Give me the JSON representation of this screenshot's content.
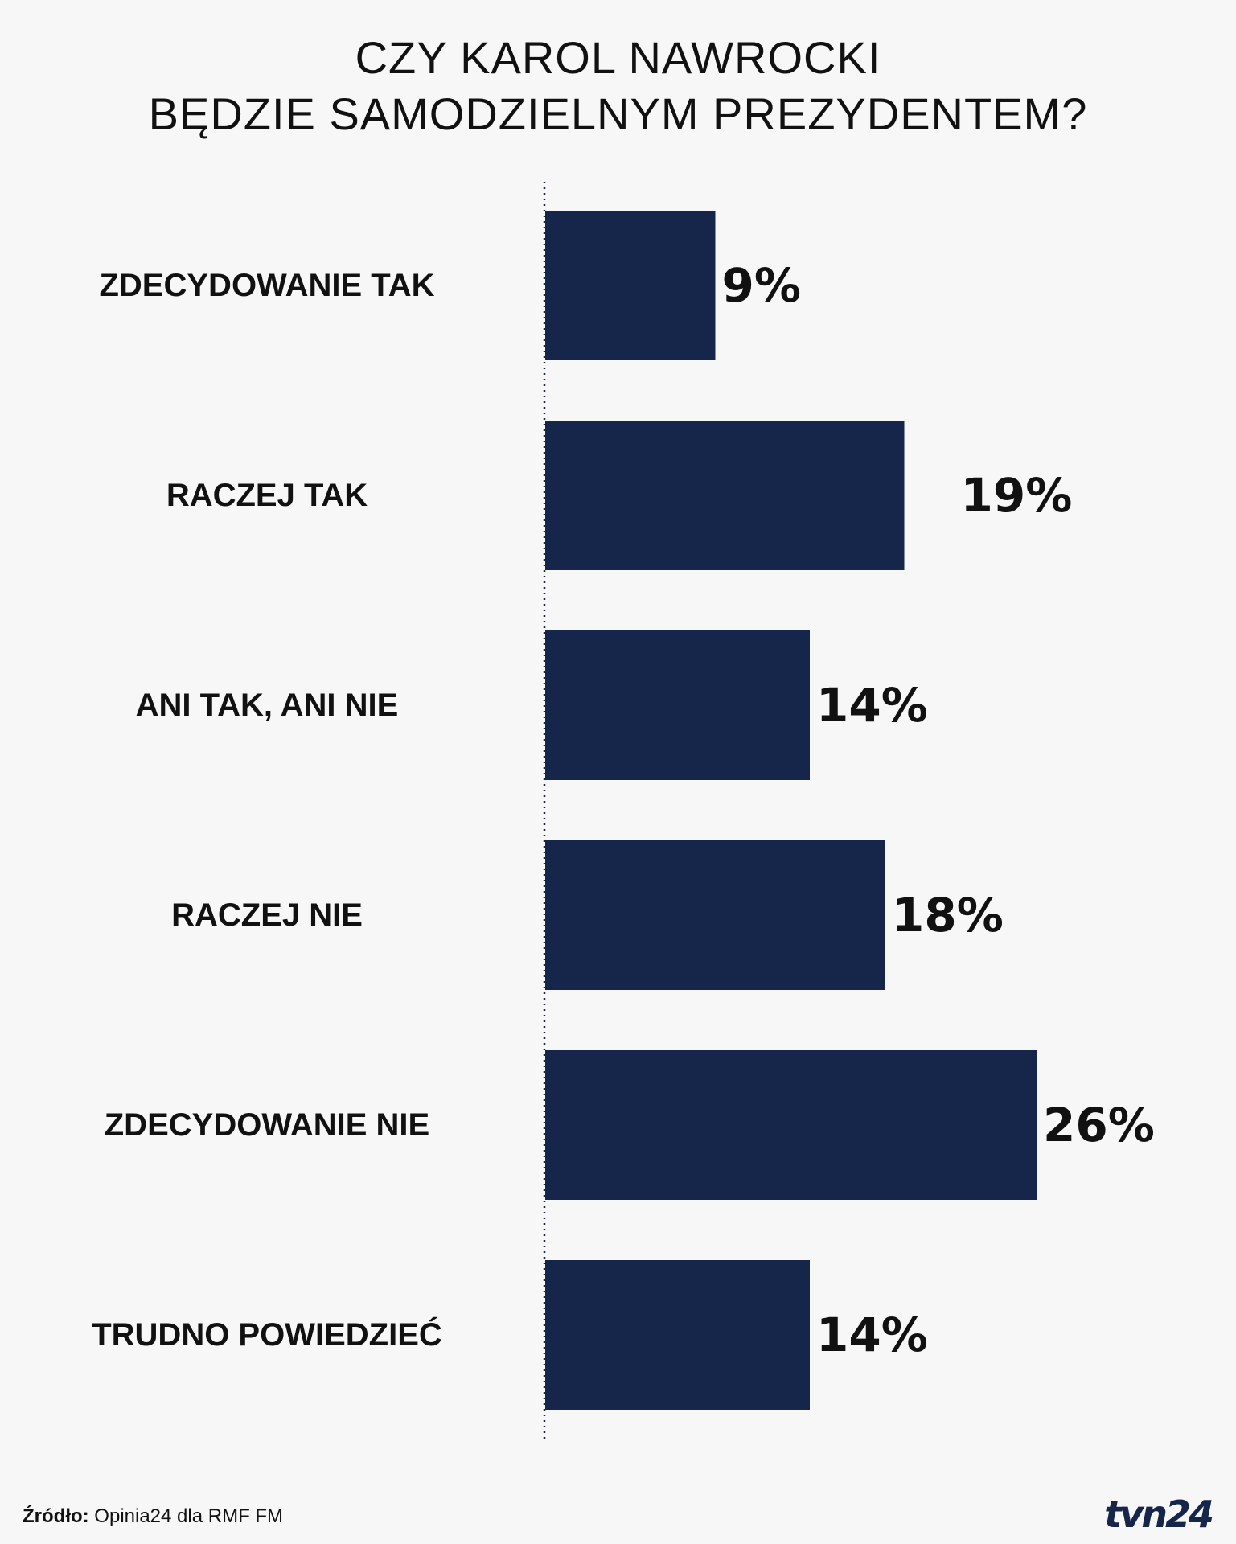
{
  "header": {
    "title_line_1": "CZY KAROL NAWROCKI",
    "title_line_2": "BĘDZIE SAMODZIELNYM PREZYDENTEM?"
  },
  "chart_data": {
    "type": "bar",
    "orientation": "horizontal",
    "title": "CZY KAROL NAWROCKI BĘDZIE SAMODZIELNYM PREZYDENTEM?",
    "categories": [
      "ZDECYDOWANIE TAK",
      "RACZEJ TAK",
      "ANI TAK, ANI NIE",
      "RACZEJ NIE",
      "ZDECYDOWANIE NIE",
      "TRUDNO POWIEDZIEĆ"
    ],
    "values": [
      9,
      19,
      14,
      18,
      26,
      14
    ],
    "value_labels": [
      "9%",
      "19%",
      "14%",
      "18%",
      "26%",
      "14%"
    ],
    "unit": "%",
    "bar_color": "#16264a",
    "grid": false,
    "legend": "none"
  },
  "footer": {
    "source_label": "Źródło:",
    "source_text": " Opinia24 dla RMF FM",
    "logo_text": "tvn24",
    "logo_color": "#16264a"
  }
}
